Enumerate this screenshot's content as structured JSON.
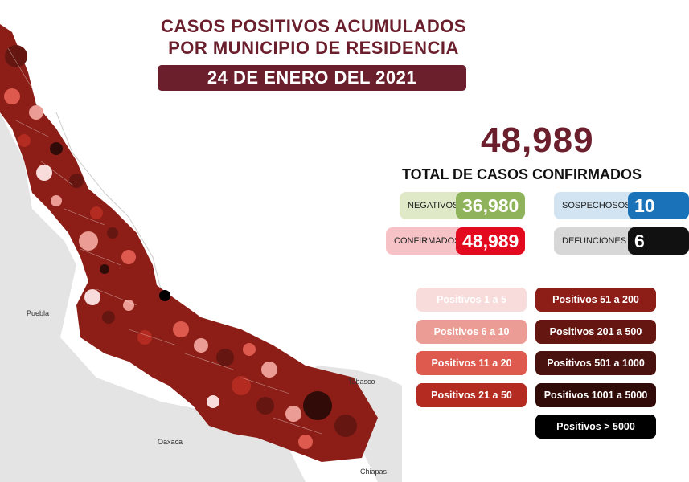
{
  "header": {
    "title_line1": "CASOS POSITIVOS ACUMULADOS",
    "title_line2": "POR MUNICIPIO DE RESIDENCIA",
    "date": "24 DE ENERO DEL 2021"
  },
  "summary": {
    "total": "48,989",
    "total_label": "TOTAL DE CASOS CONFIRMADOS",
    "negativos": {
      "label": "NEGATIVOS",
      "value": "36,980",
      "color": "#8fb35a"
    },
    "confirmados": {
      "label": "CONFIRMADOS",
      "value": "48,989",
      "color": "#e30a1f"
    },
    "sospechosos": {
      "label": "SOSPECHOSOS",
      "value": "10",
      "color": "#1a73b8"
    },
    "defunciones": {
      "label": "DEFUNCIONES",
      "value": "6",
      "color": "#111111"
    }
  },
  "legend": [
    {
      "label": "Positivos 1 a 5",
      "color": "#f7dcdb"
    },
    {
      "label": "Positivos 6 a 10",
      "color": "#eb9d95"
    },
    {
      "label": "Positivos 11 a 20",
      "color": "#de5a4e"
    },
    {
      "label": "Positivos 21 a 50",
      "color": "#b42b21"
    },
    {
      "label": "Positivos 51 a 200",
      "color": "#8c1e17"
    },
    {
      "label": "Positivos 201 a 500",
      "color": "#651611"
    },
    {
      "label": "Positivos 501 a 1000",
      "color": "#4a120e"
    },
    {
      "label": "Positivos 1001 a 5000",
      "color": "#300b08"
    },
    {
      "label": "Positivos > 5000",
      "color": "#000000"
    }
  ],
  "map": {
    "neighbor_labels": {
      "puebla": "Puebla",
      "tabasco": "Tabasco",
      "oaxaca": "Oaxaca",
      "chiapas": "Chiapas"
    }
  }
}
